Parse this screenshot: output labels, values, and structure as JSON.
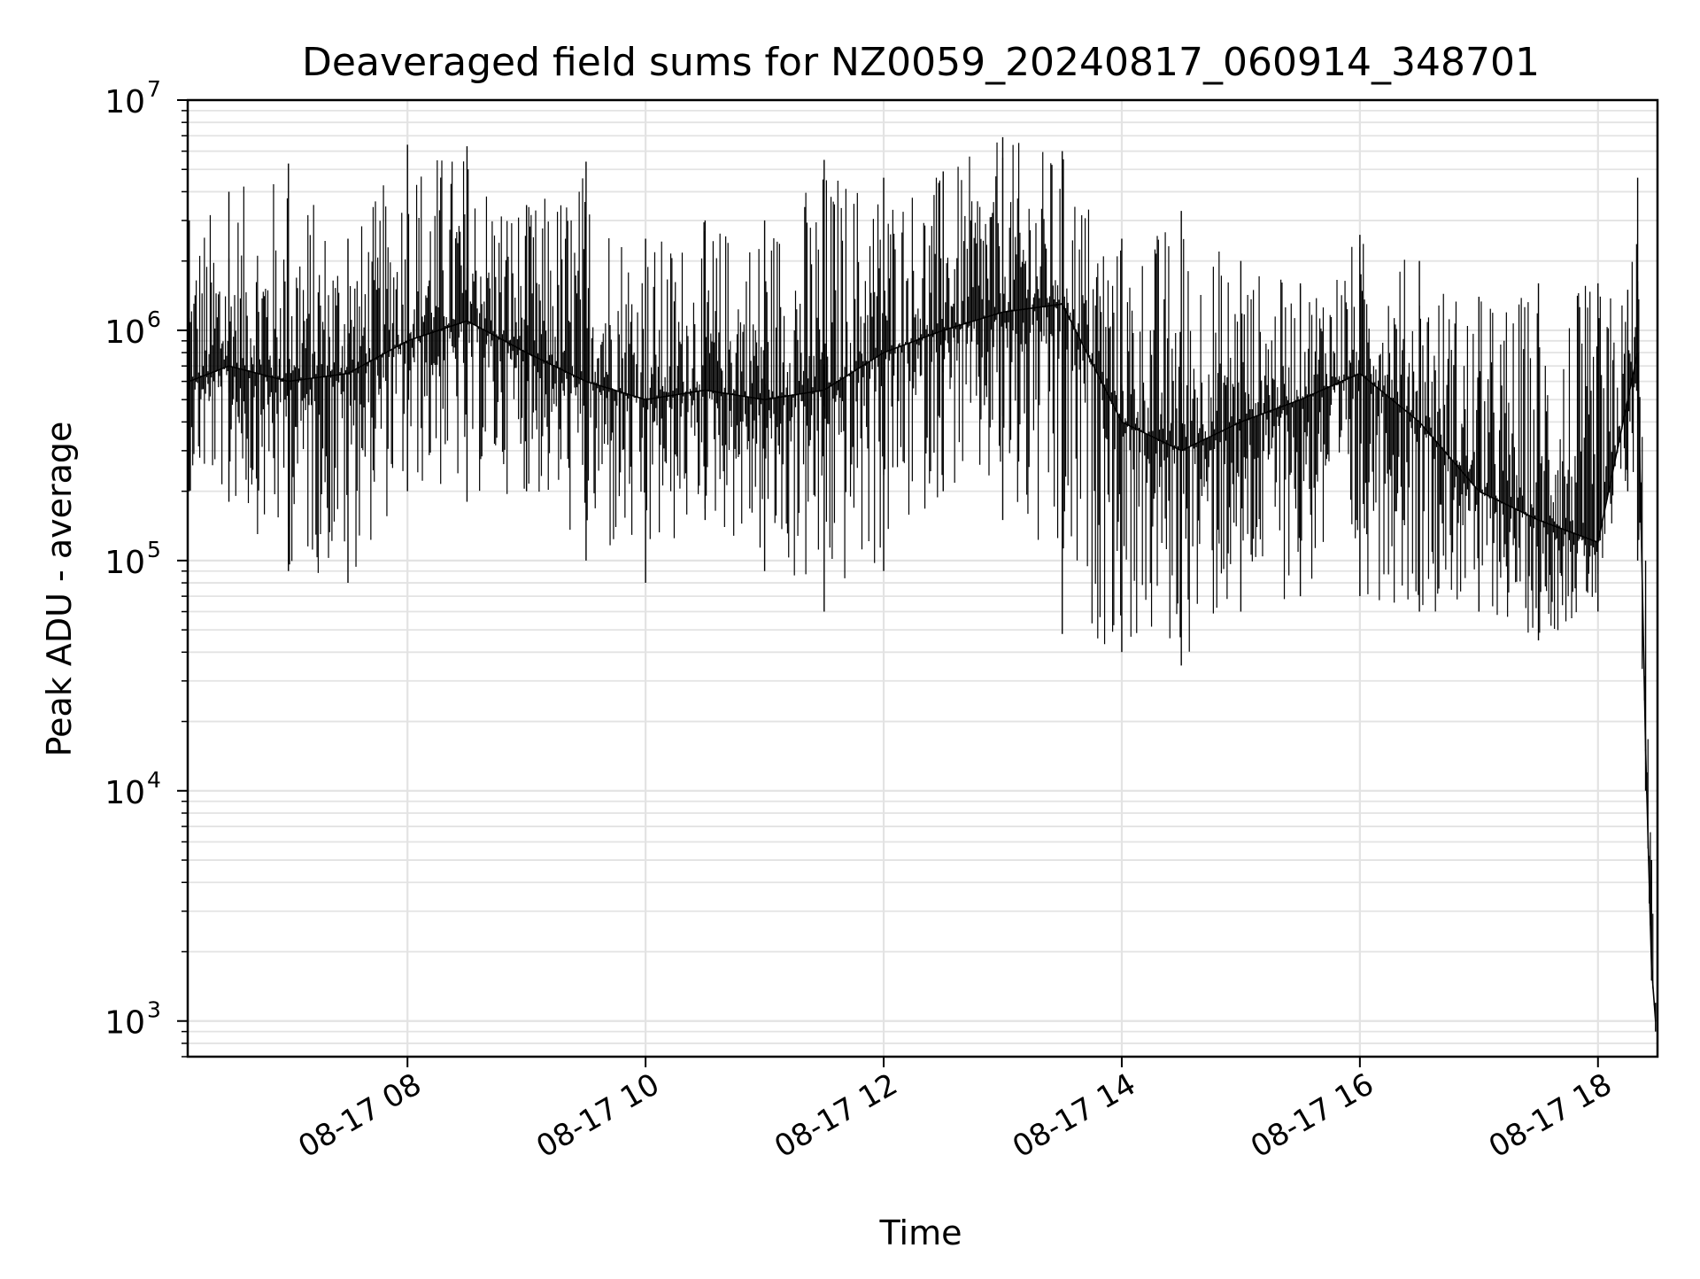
{
  "chart_data": {
    "type": "line",
    "title": "Deaveraged field sums for NZ0059_20240817_060914_348701",
    "xlabel": "Time",
    "ylabel": "Peak ADU - average",
    "x_scale": "time",
    "y_scale": "log",
    "xlim": [
      "2024-08-17T06:09:14",
      "2024-08-17T18:30:00"
    ],
    "ylim": [
      700,
      10000000
    ],
    "grid": true,
    "legend": "none",
    "line_color": "#000000",
    "x_ticks": [
      {
        "value": "2024-08-17T08:00:00",
        "label": "08-17 08"
      },
      {
        "value": "2024-08-17T10:00:00",
        "label": "08-17 10"
      },
      {
        "value": "2024-08-17T12:00:00",
        "label": "08-17 12"
      },
      {
        "value": "2024-08-17T14:00:00",
        "label": "08-17 14"
      },
      {
        "value": "2024-08-17T16:00:00",
        "label": "08-17 16"
      },
      {
        "value": "2024-08-17T18:00:00",
        "label": "08-17 18"
      }
    ],
    "y_ticks": [
      {
        "value": 1000,
        "base": "10",
        "exp": "3"
      },
      {
        "value": 10000,
        "base": "10",
        "exp": "4"
      },
      {
        "value": 100000,
        "base": "10",
        "exp": "5"
      },
      {
        "value": 1000000,
        "base": "10",
        "exp": "6"
      },
      {
        "value": 10000000,
        "base": "10",
        "exp": "7"
      }
    ],
    "series": [
      {
        "x": [
          "2024-08-17T06:10:00",
          "2024-08-17T06:30:00",
          "2024-08-17T07:00:00",
          "2024-08-17T07:30:00",
          "2024-08-17T08:00:00",
          "2024-08-17T08:30:00",
          "2024-08-17T09:00:00",
          "2024-08-17T09:30:00",
          "2024-08-17T10:00:00",
          "2024-08-17T10:30:00",
          "2024-08-17T11:00:00",
          "2024-08-17T11:30:00",
          "2024-08-17T12:00:00",
          "2024-08-17T12:30:00",
          "2024-08-17T13:00:00",
          "2024-08-17T13:30:00",
          "2024-08-17T14:00:00",
          "2024-08-17T14:30:00",
          "2024-08-17T15:00:00",
          "2024-08-17T15:30:00",
          "2024-08-17T16:00:00",
          "2024-08-17T16:30:00",
          "2024-08-17T17:00:00",
          "2024-08-17T17:30:00",
          "2024-08-17T18:00:00",
          "2024-08-17T18:15:00",
          "2024-08-17T18:20:00",
          "2024-08-17T18:24:00",
          "2024-08-17T18:27:00",
          "2024-08-17T18:29:00"
        ],
        "y": [
          600000,
          700000,
          600000,
          650000,
          900000,
          1100000,
          800000,
          600000,
          500000,
          550000,
          500000,
          550000,
          800000,
          1000000,
          1200000,
          1300000,
          400000,
          300000,
          400000,
          500000,
          650000,
          400000,
          200000,
          150000,
          120000,
          500000,
          800000,
          15000,
          1700,
          1000
        ],
        "y_min": [
          200000,
          180000,
          90000,
          80000,
          200000,
          180000,
          200000,
          100000,
          80000,
          150000,
          90000,
          60000,
          90000,
          200000,
          150000,
          48000,
          40000,
          35000,
          60000,
          70000,
          70000,
          60000,
          60000,
          45000,
          60000,
          200000,
          100000,
          10000,
          1500,
          900
        ],
        "y_max": [
          3000000,
          4000000,
          5300000,
          2500000,
          6400000,
          6300000,
          3500000,
          5400000,
          2500000,
          3000000,
          3000000,
          5500000,
          4600000,
          4900000,
          6900000,
          6000000,
          2500000,
          3300000,
          2000000,
          1600000,
          2600000,
          2000000,
          1400000,
          1600000,
          1600000,
          1500000,
          4600000,
          100000,
          5000,
          1200
        ]
      }
    ]
  }
}
